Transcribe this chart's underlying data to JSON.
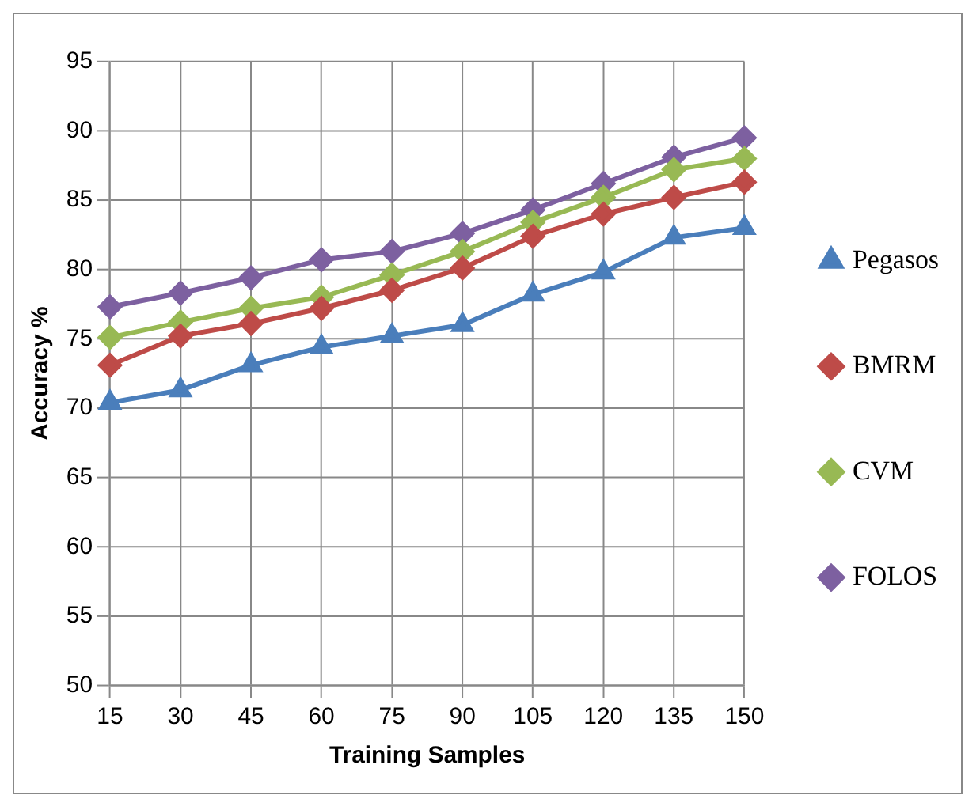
{
  "chart_data": {
    "type": "line",
    "xlabel": "Training Samples",
    "ylabel": "Accuracy %",
    "categories": [
      "15",
      "30",
      "45",
      "60",
      "75",
      "90",
      "105",
      "120",
      "135",
      "150"
    ],
    "series": [
      {
        "name": "Pegasos",
        "color": "#4a7ebb",
        "marker": "triangle",
        "values": [
          70.4,
          71.3,
          73.1,
          74.4,
          75.2,
          76.0,
          78.2,
          79.8,
          82.3,
          83.0
        ]
      },
      {
        "name": "BMRM",
        "color": "#be4b48",
        "marker": "diamond",
        "values": [
          73.1,
          75.2,
          76.1,
          77.2,
          78.5,
          80.1,
          82.4,
          84.0,
          85.2,
          86.3
        ]
      },
      {
        "name": "CVM",
        "color": "#98b954",
        "marker": "diamond",
        "values": [
          75.1,
          76.2,
          77.2,
          78.0,
          79.6,
          81.3,
          83.4,
          85.2,
          87.2,
          88.0
        ]
      },
      {
        "name": "FOLOS",
        "color": "#7d60a0",
        "marker": "diamond",
        "values": [
          77.3,
          78.3,
          79.4,
          80.7,
          81.3,
          82.6,
          84.3,
          86.2,
          88.1,
          89.5
        ]
      }
    ],
    "ylim": [
      50,
      95
    ],
    "yticks": [
      50,
      55,
      60,
      65,
      70,
      75,
      80,
      85,
      90,
      95
    ],
    "grid": true,
    "legend": "right",
    "line_style": "solid"
  }
}
